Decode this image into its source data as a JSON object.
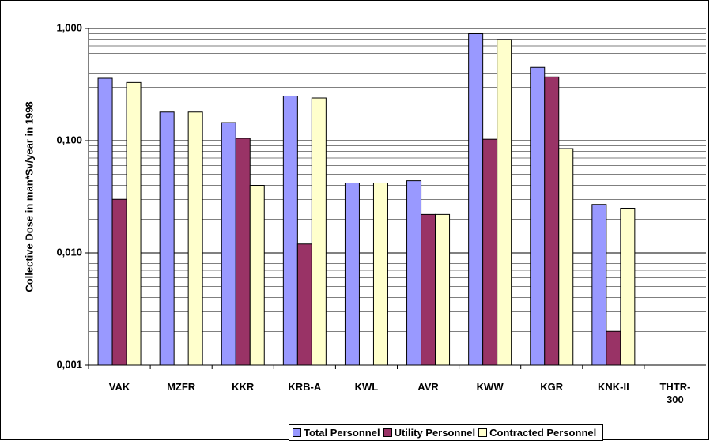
{
  "chart_data": {
    "type": "bar",
    "y_label": "Collective Dose in man*Sv/year in 1998",
    "categories": [
      "VAK",
      "MZFR",
      "KKR",
      "KRB-A",
      "KWL",
      "AVR",
      "KWW",
      "KGR",
      "KNK-II",
      "THTR-300"
    ],
    "series": [
      {
        "name": "Total Personnel",
        "color": "#9999ff",
        "values": [
          0.36,
          0.18,
          0.145,
          0.25,
          0.042,
          0.044,
          0.9,
          0.45,
          0.027,
          null
        ]
      },
      {
        "name": "Utility Personnel",
        "color": "#993366",
        "values": [
          0.03,
          null,
          0.105,
          0.012,
          null,
          0.022,
          0.103,
          0.37,
          0.002,
          null
        ]
      },
      {
        "name": "Contracted Personnel",
        "color": "#ffffcc",
        "values": [
          0.33,
          0.18,
          0.04,
          0.24,
          0.042,
          0.022,
          0.8,
          0.085,
          0.025,
          null
        ]
      }
    ],
    "log_scale": true,
    "ylim": [
      0.001,
      1
    ],
    "yticks": [
      {
        "value": 0.001,
        "label": "0,001"
      },
      {
        "value": 0.01,
        "label": "0,010"
      },
      {
        "value": 0.1,
        "label": "0,100"
      },
      {
        "value": 1,
        "label": "1,000"
      }
    ],
    "yticks_minor": [
      0.002,
      0.003,
      0.004,
      0.005,
      0.006,
      0.007,
      0.008,
      0.009,
      0.02,
      0.03,
      0.04,
      0.05,
      0.06,
      0.07,
      0.08,
      0.09,
      0.2,
      0.3,
      0.4,
      0.5,
      0.6,
      0.7,
      0.8,
      0.9
    ],
    "grid": true,
    "legend": "bottom"
  }
}
